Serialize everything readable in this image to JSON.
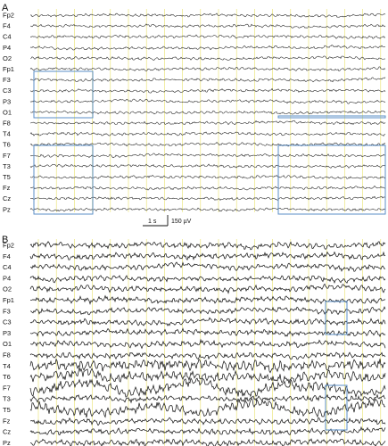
{
  "panels": [
    {
      "id": "A",
      "label": "A",
      "channels": [
        "Fp2",
        "F4",
        "C4",
        "P4",
        "O2",
        "Fp1",
        "F3",
        "C3",
        "P3",
        "O1",
        "F8",
        "T4",
        "T6",
        "F7",
        "T3",
        "T5",
        "Fz",
        "Cz",
        "Pz"
      ],
      "highlight_color": "#5b8fc7",
      "gridline_color": "#e8e26a"
    },
    {
      "id": "B",
      "label": "B",
      "channels": [
        "Fp2",
        "F4",
        "C4",
        "P4",
        "O2",
        "Fp1",
        "F3",
        "C3",
        "P3",
        "O1",
        "F8",
        "T4",
        "T6",
        "F7",
        "T3",
        "T5",
        "Fz",
        "Cz",
        "Pz"
      ],
      "highlight_color": "#5b8fc7",
      "gridline_color": "#e8e26a"
    }
  ],
  "scale_bar": {
    "time_label": "1 s",
    "amplitude_label": "150 µV"
  }
}
